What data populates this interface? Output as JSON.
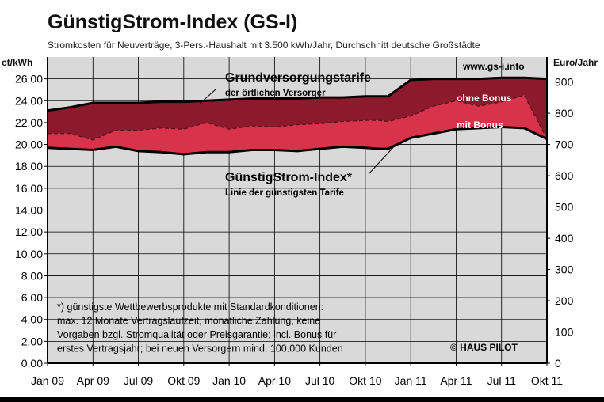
{
  "chart_data": {
    "type": "area",
    "title": "GünstigStrom-Index (GS-I)",
    "subtitle": "Stromkosten für Neuverträge, 3-Pers.-Haushalt mit 3.500 kWh/Jahr, Durchschnitt deutsche Großstädte",
    "ylabel_left": "ct/kWh",
    "ylabel_right": "Euro/Jahr",
    "ylim_left": [
      0,
      28
    ],
    "ylim_right": [
      0,
      980
    ],
    "yticks_left": [
      "0,00",
      "2,00",
      "4,00",
      "6,00",
      "8,00",
      "10,00",
      "12,00",
      "14,00",
      "16,00",
      "18,00",
      "20,00",
      "22,00",
      "24,00",
      "26,00"
    ],
    "yticks_right": [
      "0",
      "100",
      "200",
      "300",
      "400",
      "500",
      "600",
      "700",
      "800",
      "900"
    ],
    "categories": [
      "Jan 09",
      "Apr 09",
      "Jul 09",
      "Okt 09",
      "Jan 10",
      "Apr 10",
      "Jul 10",
      "Okt 10",
      "Jan 11",
      "Apr 11",
      "Jul 11",
      "Okt 11"
    ],
    "x": [
      0,
      0.5,
      1,
      1.5,
      2,
      2.5,
      3,
      3.5,
      4,
      4.5,
      5,
      5.5,
      6,
      6.5,
      7,
      7.3,
      7.5,
      8,
      8.5,
      9,
      9.5,
      10,
      10.5,
      11
    ],
    "series": [
      {
        "name": "Grundversorgungstarife",
        "color": "#8b1a2c",
        "values": [
          23.1,
          23.4,
          23.8,
          23.8,
          23.8,
          23.9,
          23.9,
          24.0,
          24.1,
          24.2,
          24.2,
          24.2,
          24.3,
          24.3,
          24.4,
          24.4,
          24.4,
          25.9,
          26.0,
          26.0,
          26.0,
          26.1,
          26.1,
          26.0
        ]
      },
      {
        "name": "ohne Bonus",
        "color": "#d9324b",
        "values": [
          21.0,
          21.0,
          20.4,
          21.3,
          21.3,
          21.5,
          21.4,
          22.0,
          21.4,
          21.7,
          21.6,
          21.8,
          21.9,
          22.1,
          22.2,
          22.2,
          22.1,
          22.6,
          23.5,
          24.0,
          23.5,
          23.9,
          24.5,
          20.5
        ]
      },
      {
        "name": "mit Bonus",
        "color": "#e8435c",
        "values": [
          19.7,
          19.6,
          19.5,
          19.8,
          19.4,
          19.3,
          19.1,
          19.3,
          19.3,
          19.5,
          19.5,
          19.4,
          19.6,
          19.8,
          19.7,
          19.6,
          19.6,
          20.6,
          21.0,
          21.4,
          21.5,
          21.6,
          21.5,
          20.5
        ]
      }
    ],
    "annotations": {
      "grund_title": "Grundversorgungstarife",
      "grund_sub": "der örtlichen Versorger",
      "gsi_title": "GünstigStrom-Index*",
      "gsi_sub": "Linie der günstigsten Tarife",
      "ohne": "ohne Bonus",
      "mit": "mit Bonus",
      "website": "www.gs-i.info",
      "footnote": [
        "*) günstigste Wettbewerbsprodukte mit Standardkonditionen:",
        "max. 12 Monate Vertragslaufzeit, monatliche Zahlung, keine",
        "Vorgaben bzgl. Stromqualität oder Preisgarantie; incl. Bonus für",
        "erstes Vertragsjahr; bei neuen Versorgern mind. 100.000 Kunden"
      ],
      "logo": "© HAUS PILOT"
    },
    "grid": true,
    "colors": {
      "plot_bg": "#d9d9d9",
      "grund": "#8b1a2c",
      "bonus_band": "#d9324b",
      "line": "#000000"
    }
  }
}
